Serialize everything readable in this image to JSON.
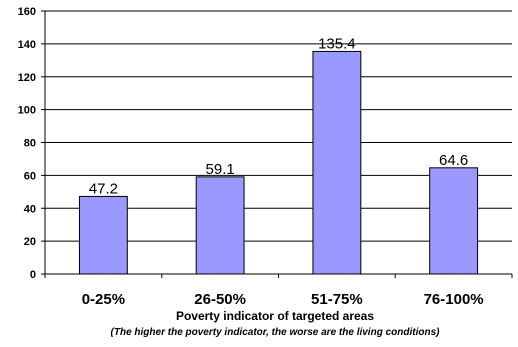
{
  "chart_data": {
    "type": "bar",
    "categories": [
      "0-25%",
      "26-50%",
      "51-75%",
      "76-100%"
    ],
    "values": [
      47.2,
      59.1,
      135.4,
      64.6
    ],
    "data_labels": [
      "47.2",
      "59.1",
      "135.4",
      "64.6"
    ],
    "xlabel": "Poverty indicator of targeted areas",
    "note": "(The higher the poverty indicator, the worse are the living conditions)",
    "ylabel": "",
    "ylim": [
      0,
      160
    ],
    "yticks": [
      0,
      20,
      40,
      60,
      80,
      100,
      120,
      140,
      160
    ],
    "grid": true,
    "legend": "none",
    "bar_color": "#9999ff"
  }
}
